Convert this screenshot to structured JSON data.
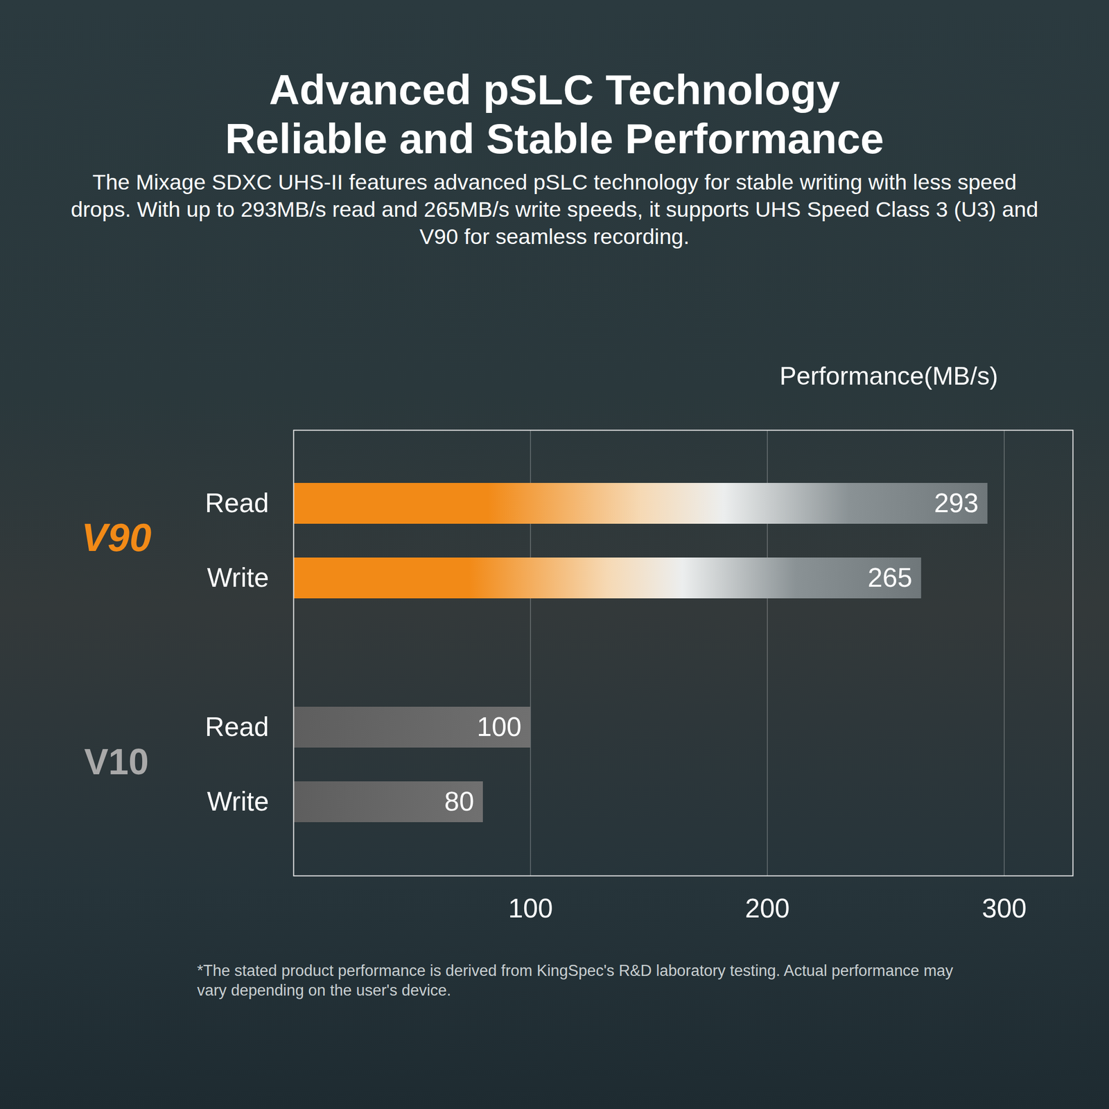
{
  "chart_data": {
    "type": "bar",
    "orientation": "horizontal",
    "title": "Advanced pSLC Technology\nReliable and Stable Performance",
    "subtitle": "The Mixage SDXC UHS-II features advanced pSLC technology for stable writing with less speed drops. With up to 293MB/s read and 265MB/s write speeds, it supports UHS Speed Class 3 (U3) and V90 for seamless recording.",
    "xlabel": "Performance(MB/s)",
    "categories": [
      "Read",
      "Write"
    ],
    "series": [
      {
        "name": "V90",
        "color": "#f28a17",
        "values": [
          293,
          265
        ]
      },
      {
        "name": "V10",
        "color": "#5e5e5e",
        "values": [
          100,
          80
        ]
      }
    ],
    "xlim": [
      0,
      329
    ],
    "xticks": [
      100,
      200,
      300
    ],
    "grid": true,
    "data_labels": true,
    "note": "*The stated product performance is derived from KingSpec's R&D laboratory testing. Actual performance may vary depending on the user's device."
  }
}
